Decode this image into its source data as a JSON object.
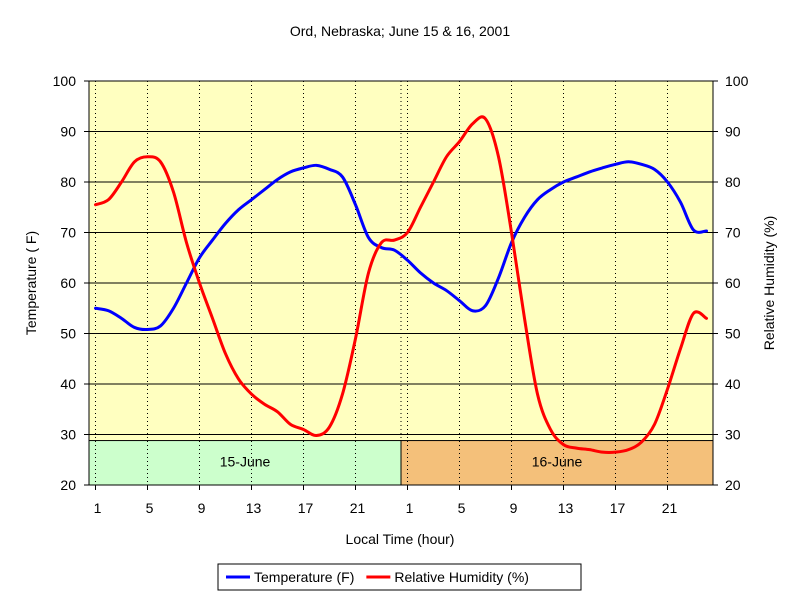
{
  "chart_data": {
    "type": "line",
    "title": "Ord, Nebraska; June 15 & 16, 2001",
    "xlabel": "Local Time (hour)",
    "ylabel": "Temperature ( F)",
    "y2label": "Relative Humidity (%)",
    "ylim": [
      20,
      100
    ],
    "y2lim": [
      20,
      100
    ],
    "yticks": [
      "20",
      "30",
      "40",
      "50",
      "60",
      "70",
      "80",
      "90",
      "100"
    ],
    "y2ticks": [
      "20",
      "30",
      "40",
      "50",
      "60",
      "70",
      "80",
      "90",
      "100"
    ],
    "xtick_labels": [
      "1",
      "5",
      "9",
      "13",
      "17",
      "21",
      "1",
      "5",
      "9",
      "13",
      "17",
      "21"
    ],
    "xlim": [
      0.5,
      48.5
    ],
    "grid": true,
    "legend_position": "bottom",
    "bands": [
      {
        "label": "15-June",
        "from": 0.5,
        "to": 24.5,
        "color": "#ccffcc"
      },
      {
        "label": "16-June",
        "from": 24.5,
        "to": 48.5,
        "color": "#f4c07a"
      }
    ],
    "x": [
      1,
      2,
      3,
      4,
      5,
      6,
      7,
      8,
      9,
      10,
      11,
      12,
      13,
      14,
      15,
      16,
      17,
      18,
      19,
      20,
      21,
      22,
      23,
      24,
      25,
      26,
      27,
      28,
      29,
      30,
      31,
      32,
      33,
      34,
      35,
      36,
      37,
      38,
      39,
      40,
      41,
      42,
      43,
      44,
      45,
      46,
      47,
      48
    ],
    "series": [
      {
        "name": "Temperature (F)",
        "color": "#0000ff",
        "axis": "left",
        "values": [
          55,
          54.5,
          53,
          51.2,
          50.8,
          51.5,
          55,
          60,
          65,
          68.5,
          71.8,
          74.5,
          76.5,
          78.5,
          80.5,
          82,
          82.8,
          83.3,
          82.5,
          81,
          75.5,
          69,
          67,
          66.5,
          64.5,
          62,
          60,
          58.5,
          56.5,
          54.5,
          55.5,
          61,
          68,
          73,
          76.5,
          78.5,
          80,
          81,
          82,
          82.8,
          83.5,
          84,
          83.5,
          82.5,
          80,
          76,
          70.5,
          70.3
        ]
      },
      {
        "name": "Relative Humidity (%)",
        "color": "#ff0000",
        "axis": "right",
        "values": [
          75.5,
          76.5,
          80,
          84,
          85,
          84,
          78,
          68,
          60,
          53,
          46,
          41,
          38,
          36,
          34.5,
          32,
          31,
          29.8,
          31.5,
          38,
          49,
          62,
          68,
          68.5,
          70,
          75,
          80,
          85,
          88,
          91.5,
          92.5,
          85,
          70,
          53,
          38,
          31,
          28,
          27.3,
          27,
          26.5,
          26.5,
          27,
          28.5,
          32,
          39,
          47,
          54,
          53
        ]
      }
    ]
  }
}
